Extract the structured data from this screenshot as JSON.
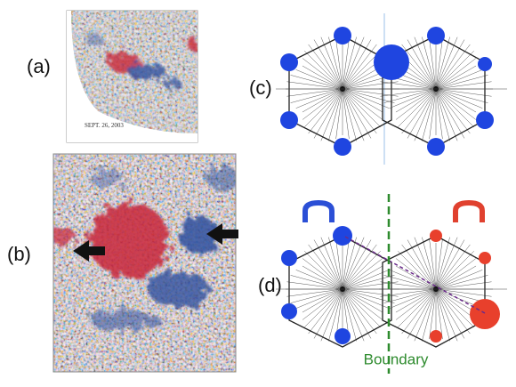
{
  "panels": {
    "a": {
      "label": "(a)",
      "date": "SEPT. 26, 2003"
    },
    "b": {
      "label": "(b)"
    },
    "c": {
      "label": "(c)"
    },
    "d": {
      "label": "(d)",
      "boundary": "Boundary"
    }
  }
}
